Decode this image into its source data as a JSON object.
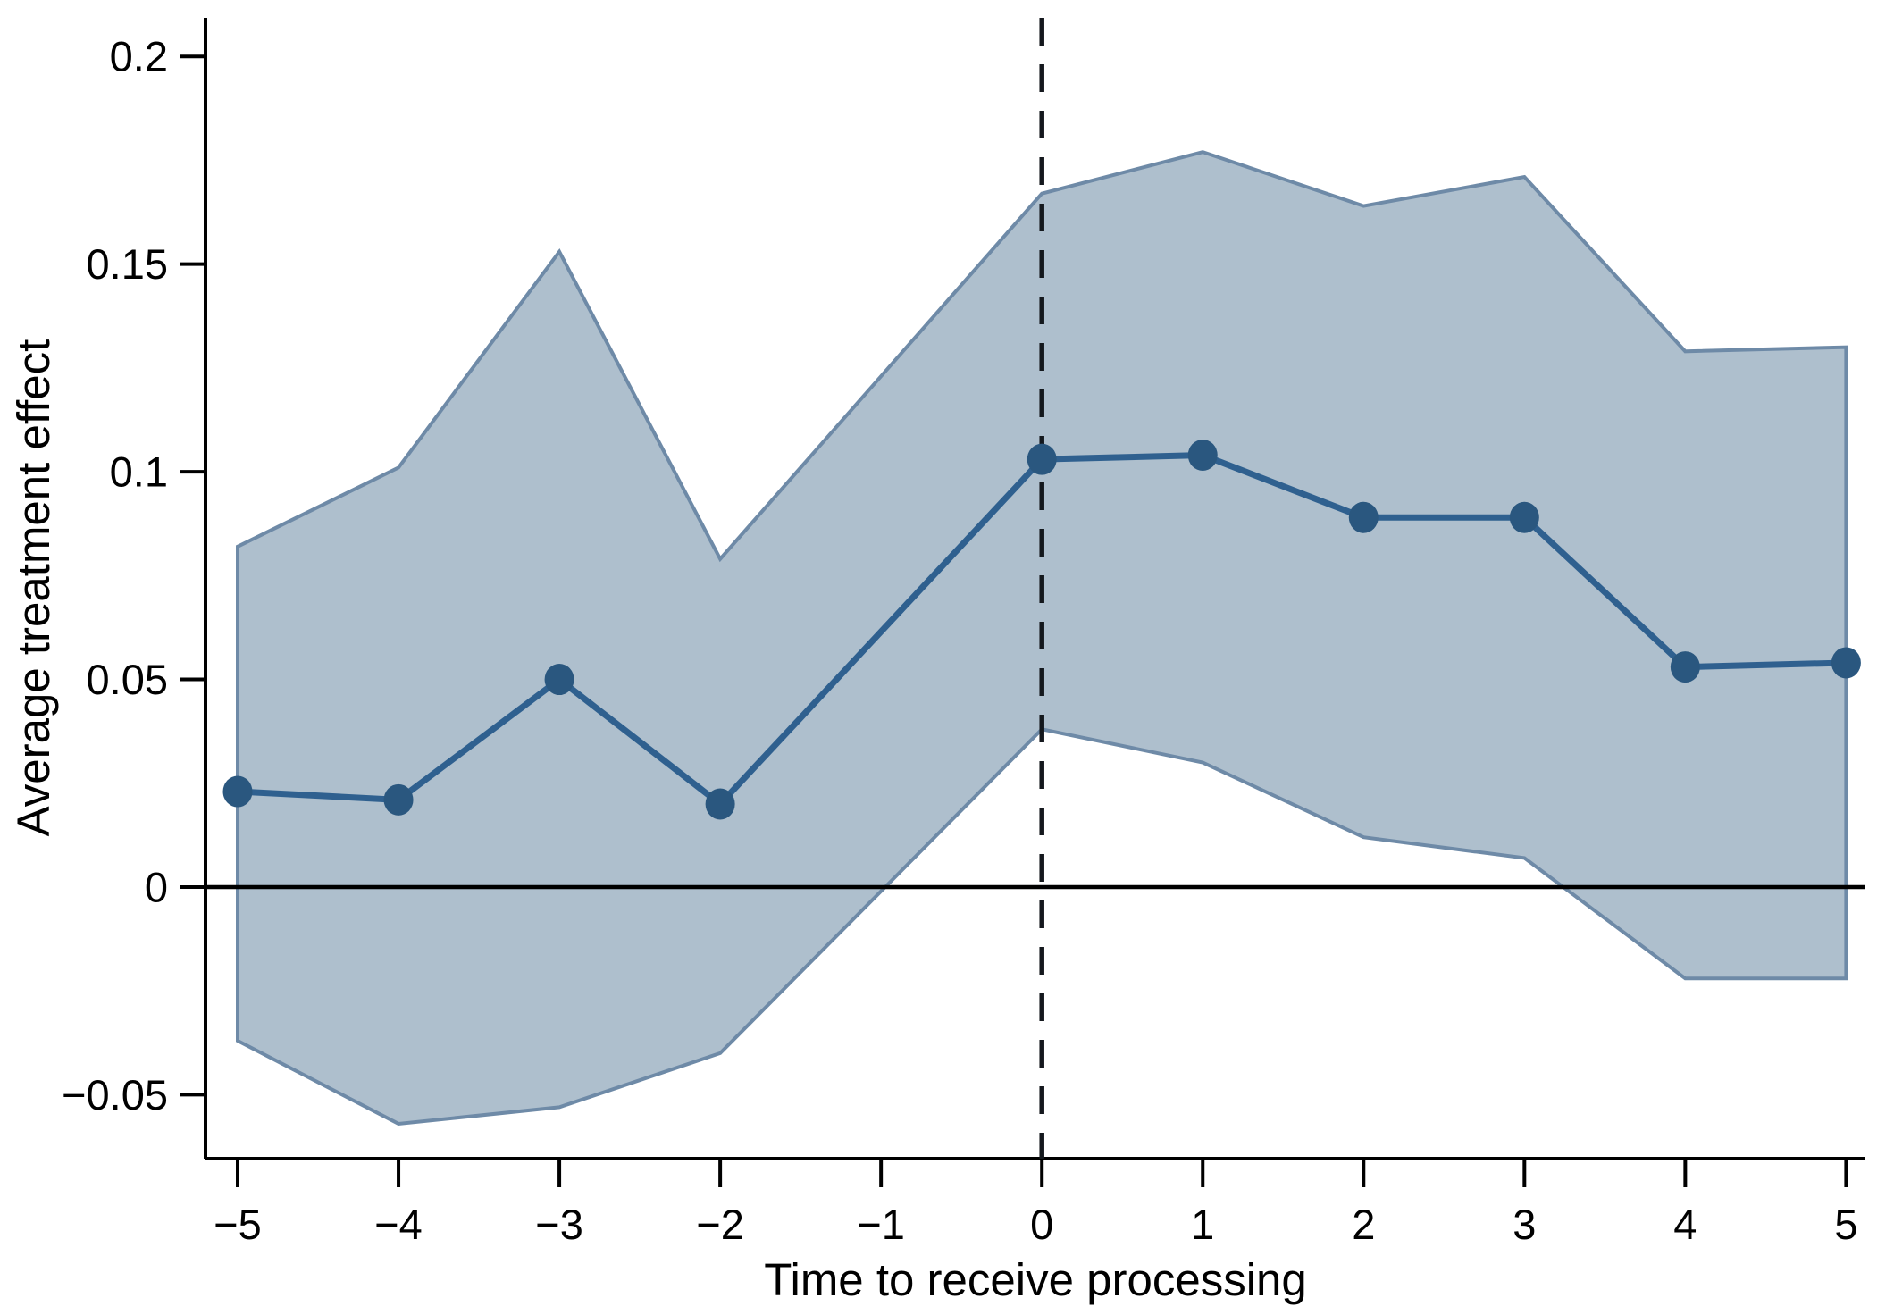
{
  "figure": {
    "background": "#ffffff",
    "description": "Event-study plot of average treatment effect by event time with 95% confidence band, dashed vertical reference line at time 0 and solid horizontal line at effect 0"
  },
  "colors": {
    "band_fill": "#aebfcd",
    "band_edge": "#6e8aa7",
    "series_line": "#2f608f",
    "marker_fill": "#2a577f",
    "reference_dashed": "#14181d",
    "axis": "#000000",
    "zero_line": "#000000"
  },
  "chart_data": {
    "type": "line",
    "subtype": "event-study with confidence band",
    "title": "",
    "xlabel": "Time to receive processing",
    "ylabel": "Average treatment effect",
    "x": [
      -5,
      -4,
      -3,
      -2,
      0,
      1,
      2,
      3,
      4,
      5
    ],
    "series": [
      {
        "name": "Average treatment effect",
        "values": [
          0.023,
          0.021,
          0.05,
          0.02,
          0.103,
          0.104,
          0.089,
          0.089,
          0.053,
          0.054
        ]
      }
    ],
    "ci_upper": [
      0.082,
      0.101,
      0.153,
      0.079,
      0.167,
      0.177,
      0.164,
      0.171,
      0.129,
      0.13
    ],
    "ci_lower": [
      -0.037,
      -0.057,
      -0.053,
      -0.04,
      0.038,
      0.03,
      0.012,
      0.007,
      -0.022,
      -0.022
    ],
    "omitted_reference_period": -1,
    "reference_lines": {
      "vertical_x": 0,
      "horizontal_y": 0
    },
    "x_ticks": [
      {
        "v": -5,
        "label": "−5"
      },
      {
        "v": -4,
        "label": "−4"
      },
      {
        "v": -3,
        "label": "−3"
      },
      {
        "v": -2,
        "label": "−2"
      },
      {
        "v": -1,
        "label": "−1"
      },
      {
        "v": 0,
        "label": "0"
      },
      {
        "v": 1,
        "label": "1"
      },
      {
        "v": 2,
        "label": "2"
      },
      {
        "v": 3,
        "label": "3"
      },
      {
        "v": 4,
        "label": "4"
      },
      {
        "v": 5,
        "label": "5"
      }
    ],
    "y_ticks": [
      {
        "v": 0.2,
        "label": "0.2"
      },
      {
        "v": 0.15,
        "label": "0.15"
      },
      {
        "v": 0.1,
        "label": "0.1"
      },
      {
        "v": 0.05,
        "label": "0.05"
      },
      {
        "v": 0,
        "label": "0"
      },
      {
        "v": -0.05,
        "label": "−0.05"
      }
    ],
    "xlim": [
      -5.2,
      5.12
    ],
    "ylim": [
      -0.0654,
      0.2093
    ],
    "grid": false,
    "legend": "none"
  }
}
